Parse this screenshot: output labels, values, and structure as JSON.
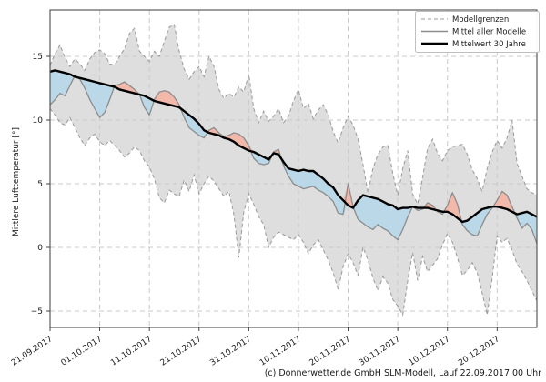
{
  "caption": "(c) Donnerwetter.de GmbH SLM-Modell, Lauf 22.09.2017 00 Uhr",
  "chart_data": {
    "type": "area",
    "title": "",
    "xlabel": "",
    "ylabel": "Mittlere Lufttemperatur [°]",
    "ylim": [
      -6.4,
      18.6
    ],
    "grid": true,
    "legend_position": "top-right",
    "legend": [
      "Modellgrenzen",
      "Mittel aller Modelle",
      "Mittelwert 30 Jahre"
    ],
    "y_ticks": [
      15,
      10,
      5,
      0,
      -5
    ],
    "y_tick_labels": [
      "15",
      "10",
      "5",
      "0",
      "−5"
    ],
    "x_tick_days": [
      0,
      10,
      20,
      30,
      40,
      50,
      60,
      70,
      80,
      90
    ],
    "x_tick_labels": [
      "21.09.2017",
      "01.10.2017",
      "11.10.2017",
      "21.10.2017",
      "31.10.2017",
      "10.11.2017",
      "20.11.2017",
      "30.11.2017",
      "10.12.2017",
      "20.12.2017"
    ],
    "days_total": 98,
    "series": [
      {
        "name": "Modellgrenzen oben",
        "role": "upper_bound",
        "values": [
          14.3,
          15.2,
          15.9,
          14.9,
          14.2,
          14.8,
          14.4,
          13.9,
          14.8,
          15.3,
          15.5,
          15.2,
          14.4,
          14.3,
          15.0,
          15.6,
          16.8,
          17.2,
          15.4,
          15.0,
          14.6,
          15.4,
          15.0,
          16.2,
          17.3,
          17.5,
          15.4,
          14.0,
          13.2,
          13.8,
          14.2,
          13.4,
          15.0,
          14.2,
          12.4,
          11.7,
          12.1,
          11.8,
          12.6,
          12.2,
          13.6,
          10.9,
          9.8,
          10.7,
          9.9,
          10.3,
          10.9,
          9.8,
          10.3,
          11.5,
          12.4,
          10.9,
          11.3,
          10.1,
          10.8,
          11.2,
          10.4,
          9.1,
          8.2,
          9.4,
          10.3,
          9.6,
          8.5,
          6.5,
          4.3,
          6.2,
          7.3,
          7.9,
          8.0,
          5.8,
          4.1,
          6.2,
          7.6,
          4.2,
          3.4,
          5.5,
          7.8,
          8.5,
          7.4,
          6.8,
          7.6,
          7.9,
          8.0,
          8.1,
          7.3,
          6.1,
          5.4,
          4.4,
          6.2,
          7.5,
          8.4,
          7.8,
          8.6,
          10.0,
          6.6,
          5.6,
          4.6,
          4.3,
          4.1
        ]
      },
      {
        "name": "Modellgrenzen unten",
        "role": "lower_bound",
        "values": [
          10.9,
          10.4,
          9.8,
          9.6,
          10.2,
          9.4,
          8.6,
          8.0,
          8.6,
          8.9,
          8.3,
          8.0,
          8.4,
          8.0,
          7.6,
          7.1,
          7.4,
          7.9,
          7.6,
          6.8,
          6.3,
          5.4,
          3.9,
          3.5,
          4.5,
          4.2,
          4.0,
          5.3,
          4.4,
          5.7,
          4.2,
          5.0,
          5.6,
          5.2,
          4.6,
          4.0,
          4.4,
          2.6,
          -0.8,
          2.8,
          4.2,
          3.4,
          2.4,
          1.8,
          0.0,
          0.8,
          1.2,
          1.0,
          0.8,
          0.6,
          1.0,
          0.4,
          -0.5,
          0.2,
          0.6,
          -0.2,
          -1.0,
          -2.0,
          -3.3,
          -1.5,
          -0.5,
          -1.2,
          -2.2,
          0.0,
          -1.0,
          -2.4,
          -3.4,
          -2.3,
          -2.8,
          -4.1,
          -4.6,
          -5.3,
          -2.6,
          -0.4,
          -2.6,
          -0.7,
          -1.9,
          -1.4,
          -0.9,
          0.2,
          1.1,
          0.4,
          -0.8,
          -2.2,
          -1.8,
          -1.2,
          -2.0,
          -3.6,
          -5.3,
          -2.4,
          0.9,
          0.4,
          0.7,
          -0.2,
          -1.3,
          -1.9,
          -2.6,
          -3.4,
          -4.2
        ]
      },
      {
        "name": "Mittel aller Modelle",
        "role": "model_mean",
        "values": [
          11.2,
          11.6,
          12.1,
          11.9,
          12.7,
          13.5,
          13.2,
          12.5,
          11.6,
          10.9,
          10.2,
          10.6,
          11.6,
          12.7,
          12.8,
          13.0,
          12.7,
          12.4,
          12.0,
          11.0,
          10.4,
          11.6,
          12.2,
          12.3,
          12.2,
          11.8,
          11.2,
          10.2,
          9.4,
          9.1,
          8.8,
          8.6,
          9.2,
          9.4,
          9.0,
          8.7,
          8.8,
          9.0,
          8.9,
          8.6,
          8.0,
          7.0,
          6.6,
          6.5,
          6.6,
          7.5,
          7.7,
          6.4,
          5.6,
          5.0,
          4.8,
          4.6,
          4.7,
          4.8,
          4.5,
          4.3,
          4.0,
          3.6,
          2.7,
          2.6,
          5.0,
          3.2,
          2.2,
          1.9,
          1.6,
          1.4,
          1.8,
          1.5,
          1.3,
          0.9,
          0.6,
          1.4,
          2.4,
          3.2,
          2.9,
          3.0,
          3.5,
          3.3,
          2.8,
          2.6,
          3.3,
          4.3,
          3.4,
          1.8,
          1.3,
          1.0,
          0.9,
          1.8,
          2.6,
          3.1,
          3.7,
          4.4,
          4.1,
          3.2,
          2.3,
          1.5,
          1.9,
          1.4,
          0.3
        ]
      },
      {
        "name": "Mittelwert 30 Jahre",
        "role": "climate_mean_30y",
        "values": [
          13.8,
          13.9,
          13.8,
          13.7,
          13.6,
          13.4,
          13.3,
          13.2,
          13.1,
          13.0,
          12.9,
          12.8,
          12.7,
          12.6,
          12.4,
          12.3,
          12.2,
          12.1,
          12.0,
          11.9,
          11.7,
          11.5,
          11.4,
          11.3,
          11.2,
          11.1,
          11.0,
          10.7,
          10.4,
          10.1,
          9.7,
          9.2,
          9.0,
          8.9,
          8.8,
          8.6,
          8.5,
          8.3,
          8.0,
          7.8,
          7.6,
          7.5,
          7.3,
          7.1,
          6.9,
          7.4,
          7.3,
          6.7,
          6.2,
          6.1,
          6.0,
          6.1,
          6.0,
          6.0,
          5.7,
          5.4,
          5.0,
          4.7,
          4.1,
          3.7,
          3.3,
          3.1,
          3.7,
          4.1,
          4.0,
          3.9,
          3.8,
          3.6,
          3.4,
          3.3,
          3.0,
          3.1,
          3.1,
          3.2,
          3.1,
          3.1,
          3.1,
          3.0,
          2.9,
          2.8,
          2.8,
          2.6,
          2.3,
          2.0,
          2.1,
          2.4,
          2.7,
          3.0,
          3.1,
          3.2,
          3.2,
          3.1,
          3.0,
          2.8,
          2.6,
          2.7,
          2.8,
          2.6,
          2.4
        ]
      }
    ],
    "colors": {
      "band_fill": "#c9c9c9",
      "bound_line": "#999999",
      "model_mean_line": "#8c8c8c",
      "climate_mean_line": "#000000",
      "warm_fill": "#f2b5a7",
      "cold_fill": "#b7d7e8",
      "grid": "#c9c9c9",
      "frame": "#4d4d4d",
      "text": "#1a1a1a"
    }
  }
}
